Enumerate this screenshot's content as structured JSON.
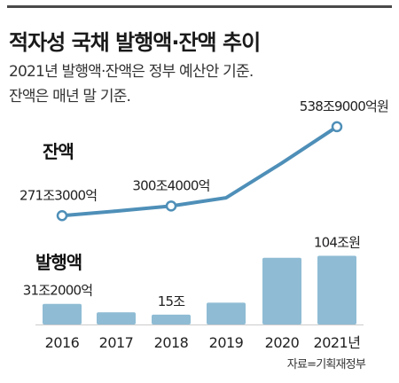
{
  "title": "적자성 국채 발행액·잔액 추이",
  "subtitle_lines": [
    "2021년 발행액·잔액은 정부 예산안 기준.",
    "잔액은 매년 말 기준."
  ],
  "source": "자료=기획재정부",
  "colors": {
    "line": "#4e8fb8",
    "bar": "#8fbcd4",
    "title_bar": "#4a4a4a",
    "text": "#222222"
  },
  "chart_data": [
    {
      "type": "line",
      "title": "잔액",
      "categories": [
        "2016",
        "2017",
        "2018",
        "2019",
        "2020",
        "2021년"
      ],
      "values": [
        271.3,
        285.0,
        300.4,
        325.0,
        430.0,
        538.9
      ],
      "unit": "조원",
      "data_labels": [
        {
          "index": 0,
          "text": "271조3000억"
        },
        {
          "index": 2,
          "text": "300조4000억"
        },
        {
          "index": 5,
          "text": "538조9000억원"
        }
      ]
    },
    {
      "type": "bar",
      "title": "발행액",
      "categories": [
        "2016",
        "2017",
        "2018",
        "2019",
        "2020",
        "2021년"
      ],
      "values": [
        31.2,
        18.5,
        15.0,
        33.0,
        101.0,
        104.0
      ],
      "unit": "조원",
      "data_labels": [
        {
          "index": 0,
          "text": "31조2000억"
        },
        {
          "index": 2,
          "text": "15조"
        },
        {
          "index": 5,
          "text": "104조원"
        }
      ]
    }
  ]
}
